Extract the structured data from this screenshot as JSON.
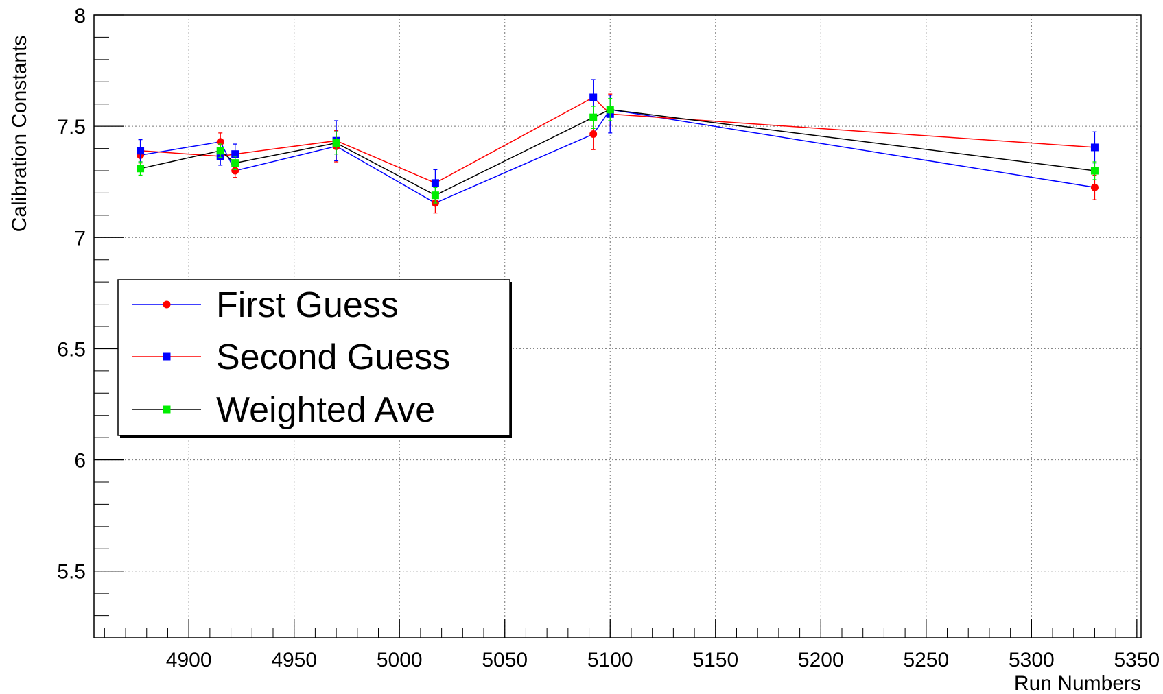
{
  "chart_data": {
    "type": "line",
    "xlabel": "Run Numbers",
    "ylabel": "Calibration Constants",
    "xlim": [
      4855,
      5352
    ],
    "ylim": [
      5.2,
      8.0
    ],
    "x_ticks": [
      "4900",
      "4950",
      "5000",
      "5050",
      "5100",
      "5150",
      "5200",
      "5250",
      "5300",
      "5350"
    ],
    "y_ticks": [
      "5.5",
      "6",
      "6.5",
      "7",
      "7.5",
      "8"
    ],
    "grid": true,
    "legend_position": "middle-left",
    "series": [
      {
        "name": "First Guess",
        "line_color": "#0000ff",
        "marker_color": "#ff0000",
        "marker": "circle",
        "x": [
          4877,
          4915,
          4922,
          4970,
          5017,
          5092,
          5100,
          5330
        ],
        "y": [
          7.37,
          7.43,
          7.3,
          7.41,
          7.155,
          7.465,
          7.575,
          7.225
        ],
        "err": [
          0.035,
          0.04,
          0.03,
          0.07,
          0.045,
          0.07,
          0.07,
          0.055
        ]
      },
      {
        "name": "Second Guess",
        "line_color": "#ff0000",
        "marker_color": "#0000ff",
        "marker": "square",
        "x": [
          4877,
          4915,
          4922,
          4970,
          5017,
          5092,
          5100,
          5330
        ],
        "y": [
          7.39,
          7.365,
          7.375,
          7.435,
          7.245,
          7.63,
          7.555,
          7.405
        ],
        "err": [
          0.05,
          0.04,
          0.045,
          0.09,
          0.06,
          0.08,
          0.085,
          0.07
        ]
      },
      {
        "name": "Weighted Ave",
        "line_color": "#000000",
        "marker_color": "#00ee00",
        "marker": "square",
        "x": [
          4877,
          4915,
          4922,
          4970,
          5017,
          5092,
          5100,
          5330
        ],
        "y": [
          7.31,
          7.39,
          7.335,
          7.425,
          7.19,
          7.54,
          7.575,
          7.3
        ],
        "err": [
          0.03,
          0.03,
          0.03,
          0.05,
          0.035,
          0.05,
          0.05,
          0.04
        ]
      }
    ]
  }
}
